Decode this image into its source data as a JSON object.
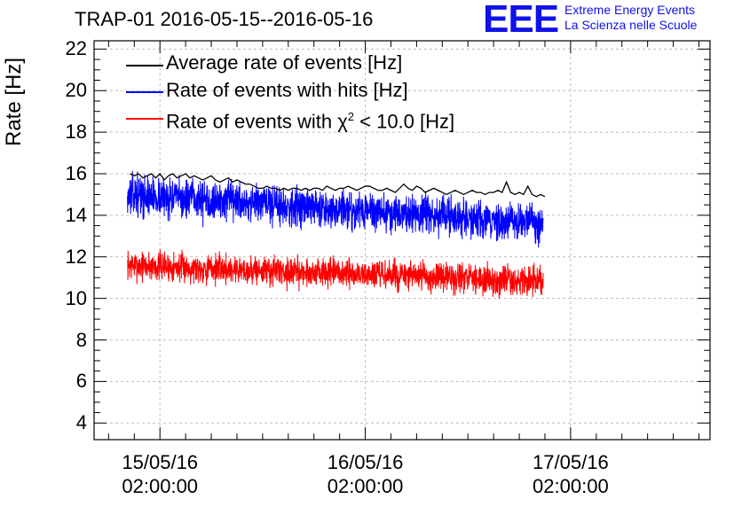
{
  "chart_data": {
    "type": "line",
    "title": "TRAP-01 2016-05-15--2016-05-16",
    "ylabel": "Rate [Hz]",
    "xlabel": "",
    "ylim": [
      3.2,
      22.4
    ],
    "xlim_hours": [
      -7.7,
      64.3
    ],
    "y_ticks": [
      "4",
      "6",
      "8",
      "10",
      "12",
      "14",
      "16",
      "18",
      "20",
      "22"
    ],
    "x_ticks": [
      {
        "date": "15/05/16",
        "time": "02:00:00",
        "hour": 0
      },
      {
        "date": "16/05/16",
        "time": "02:00:00",
        "hour": 24
      },
      {
        "date": "17/05/16",
        "time": "02:00:00",
        "hour": 48
      }
    ],
    "series": [
      {
        "name": "Average rate of events [Hz]",
        "color": "#000000",
        "hours": [
          -3.5,
          -3.0,
          -2.5,
          -2.0,
          -1.5,
          -1.0,
          -0.5,
          0,
          0.5,
          1.0,
          1.5,
          2.0,
          2.5,
          3.0,
          3.5,
          4.0,
          4.5,
          5.0,
          5.5,
          6.0,
          6.5,
          7.0,
          7.5,
          8.0,
          8.5,
          9.0,
          9.5,
          10.0,
          10.5,
          11.0,
          11.5,
          12.0,
          12.5,
          13.0,
          13.5,
          14.0,
          14.5,
          15.0,
          15.5,
          16.0,
          16.5,
          17.0,
          17.5,
          18.0,
          18.5,
          19.0,
          19.5,
          20.0,
          20.5,
          21.0,
          21.5,
          22.0,
          22.5,
          23.0,
          23.5,
          24.0,
          24.5,
          25.0,
          25.5,
          26.0,
          26.5,
          27.0,
          27.5,
          28.0,
          28.5,
          29.0,
          29.5,
          30.0,
          30.5,
          31.0,
          31.5,
          32.0,
          32.5,
          33.0,
          33.5,
          34.0,
          34.5,
          35.0,
          35.5,
          36.0,
          36.5,
          37.0,
          37.5,
          38.0,
          38.5,
          39.0,
          39.5,
          40.0,
          40.5,
          41.0,
          41.5,
          42.0,
          42.5,
          43.0,
          43.5,
          44.0,
          44.5,
          45.0
        ],
        "values": [
          16.0,
          15.9,
          16.0,
          15.8,
          15.9,
          16.0,
          15.8,
          16.0,
          15.7,
          15.9,
          16.0,
          15.8,
          15.9,
          16.0,
          15.8,
          15.9,
          15.8,
          15.7,
          15.8,
          15.9,
          15.7,
          15.6,
          15.7,
          15.8,
          15.6,
          15.7,
          15.6,
          15.5,
          15.5,
          15.4,
          15.3,
          15.3,
          15.4,
          15.3,
          15.3,
          15.2,
          15.3,
          15.2,
          15.3,
          15.3,
          15.2,
          15.3,
          15.2,
          15.3,
          15.3,
          15.2,
          15.4,
          15.3,
          15.2,
          15.3,
          15.3,
          15.4,
          15.3,
          15.2,
          15.3,
          15.4,
          15.4,
          15.3,
          15.2,
          15.2,
          15.3,
          15.2,
          15.1,
          15.3,
          15.5,
          15.3,
          15.2,
          15.4,
          15.3,
          15.1,
          15.2,
          15.3,
          15.2,
          15.1,
          15.0,
          15.1,
          15.2,
          15.1,
          15.0,
          15.1,
          15.2,
          15.1,
          15.1,
          15.0,
          15.1,
          15.1,
          15.2,
          15.1,
          15.6,
          15.1,
          15.0,
          15.1,
          15.0,
          15.4,
          15.0,
          14.9,
          15.0,
          14.9
        ]
      },
      {
        "name": "Rate of events with hits [Hz]",
        "color": "#0000ff",
        "start_hour": -3.8,
        "end_hour": 44.8,
        "trend_start": 15.0,
        "trend_end": 13.6,
        "noise": 0.65,
        "points": 2000
      },
      {
        "name": "Rate of events with χ² < 10.0 [Hz]",
        "color": "#ff0000",
        "start_hour": -3.8,
        "end_hour": 44.8,
        "trend_start": 11.6,
        "trend_end": 10.8,
        "noise": 0.5,
        "points": 2000
      }
    ],
    "legend": {
      "entries": [
        {
          "label": "Average rate of events [Hz]",
          "color": "#000000"
        },
        {
          "label": "Rate of events with hits [Hz]",
          "color": "#0000ff"
        },
        {
          "label_pre": "Rate of events with ",
          "symbol": "χ",
          "sup": "2",
          "label_post": " < 10.0 [Hz]",
          "color": "#ff0000"
        }
      ],
      "position": "top-left"
    }
  },
  "logo": {
    "letters": "EEE",
    "line1": "Extreme Energy Events",
    "line2": "La Scienza nelle Scuole"
  }
}
